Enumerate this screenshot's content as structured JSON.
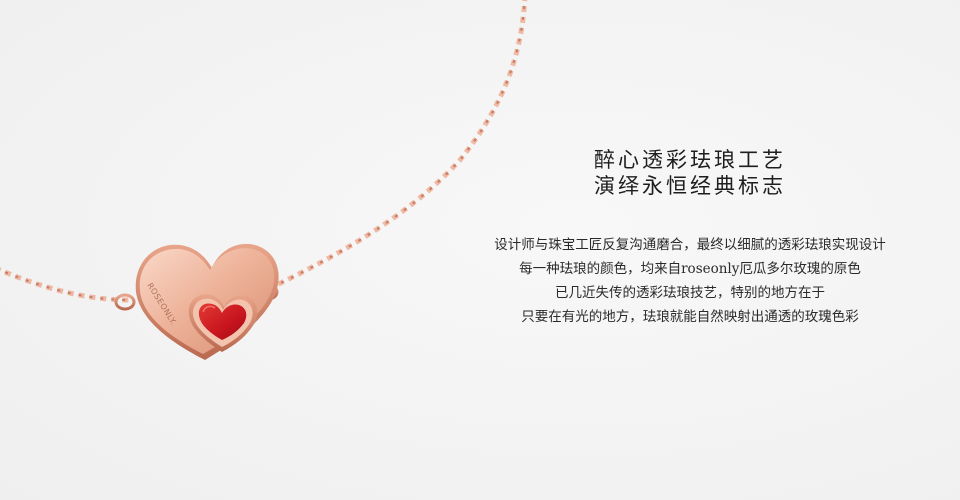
{
  "hero": {
    "headline_line1": "醉心透彩珐琅工艺",
    "headline_line2": "演绎永恒经典标志",
    "body_lines": [
      "设计师与珠宝工匠反复沟通磨合，最终以细腻的透彩珐琅实现设计",
      "每一种珐琅的颜色，均来自roseonly厄瓜多尔玫瑰的原色",
      "已几近失传的透彩珐琅技艺，特别的地方在于",
      "只要在有光的地方，珐琅就能自然映射出通透的玫瑰色彩"
    ]
  },
  "product": {
    "engraving": "ROSEONLY.",
    "colors": {
      "rose_gold": "#e9a58a",
      "rose_gold_dark": "#c97c63",
      "enamel_red": "#c8141e"
    }
  }
}
